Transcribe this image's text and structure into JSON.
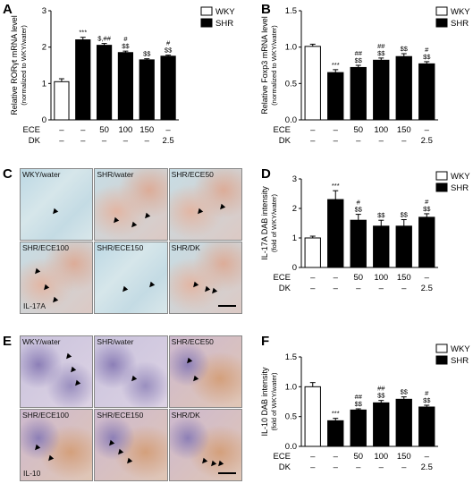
{
  "panel_letters": [
    "A",
    "B",
    "C",
    "D",
    "E",
    "F"
  ],
  "legend": {
    "wky": "WKY",
    "shr": "SHR"
  },
  "colors": {
    "wky_fill": "#ffffff",
    "shr_fill": "#000000"
  },
  "groups": {
    "ece_row": [
      "–",
      "–",
      "50",
      "100",
      "150",
      "–"
    ],
    "dk_row": [
      "–",
      "–",
      "–",
      "–",
      "–",
      "2.5"
    ],
    "ece_label": "ECE",
    "dk_label": "DK"
  },
  "chart_data": [
    {
      "type": "bar",
      "panel": "A",
      "ylabel": "Relative RORγt mRNA level",
      "ylabel2": "(normalized to WKY/water)",
      "ylim": [
        0,
        3
      ],
      "yticks": [
        "0",
        "1",
        "2",
        "3"
      ],
      "values": [
        1.05,
        2.2,
        2.05,
        1.85,
        1.65,
        1.75
      ],
      "errors": [
        0.08,
        0.07,
        0.05,
        0.04,
        0.03,
        0.03
      ],
      "annotations": [
        "",
        "***",
        "$,##",
        "#|$$",
        "$$",
        "#|$$"
      ]
    },
    {
      "type": "bar",
      "panel": "B",
      "ylabel": "Relative Foxp3 mRNA level",
      "ylabel2": "(normalized to WKY/water)",
      "ylim": [
        0,
        1.5
      ],
      "yticks": [
        "0.0",
        "0.5",
        "1.0",
        "1.5"
      ],
      "values": [
        1.01,
        0.65,
        0.72,
        0.82,
        0.87,
        0.77
      ],
      "errors": [
        0.03,
        0.04,
        0.03,
        0.03,
        0.04,
        0.03
      ],
      "annotations": [
        "",
        "***",
        "##|$$",
        "##|$$",
        "$$",
        "#|$$"
      ]
    },
    {
      "type": "bar",
      "panel": "D",
      "ylabel": "IL-17A DAB intensity",
      "ylabel2": "(fold of WKY/water)",
      "ylim": [
        0,
        3
      ],
      "yticks": [
        "0",
        "1",
        "2",
        "3"
      ],
      "values": [
        1.0,
        2.3,
        1.6,
        1.4,
        1.4,
        1.7
      ],
      "errors": [
        0.06,
        0.3,
        0.2,
        0.2,
        0.22,
        0.12
      ],
      "annotations": [
        "",
        "***",
        "#|$$",
        "$$",
        "$$",
        "#|$$"
      ]
    },
    {
      "type": "bar",
      "panel": "F",
      "ylabel": "IL-10 DAB intensity",
      "ylabel2": "(fold of WKY/water)",
      "ylim": [
        0,
        1.5
      ],
      "yticks": [
        "0.0",
        "0.5",
        "1.0",
        "1.5"
      ],
      "values": [
        1.0,
        0.43,
        0.61,
        0.73,
        0.79,
        0.66
      ],
      "errors": [
        0.07,
        0.04,
        0.02,
        0.04,
        0.04,
        0.03
      ],
      "annotations": [
        "",
        "***",
        "##|$$",
        "##|$$",
        "$$",
        "#|$$"
      ]
    }
  ],
  "ihc_c": {
    "labels": [
      "WKY/water",
      "SHR/water",
      "SHR/ECE50",
      "SHR/ECE100",
      "SHR/ECE150",
      "SHR/DK"
    ],
    "marker": "IL-17A"
  },
  "ihc_e": {
    "labels": [
      "WKY/water",
      "SHR/water",
      "SHR/ECE50",
      "SHR/ECE100",
      "SHR/ECE150",
      "SHR/DK"
    ],
    "marker": "IL-10"
  }
}
